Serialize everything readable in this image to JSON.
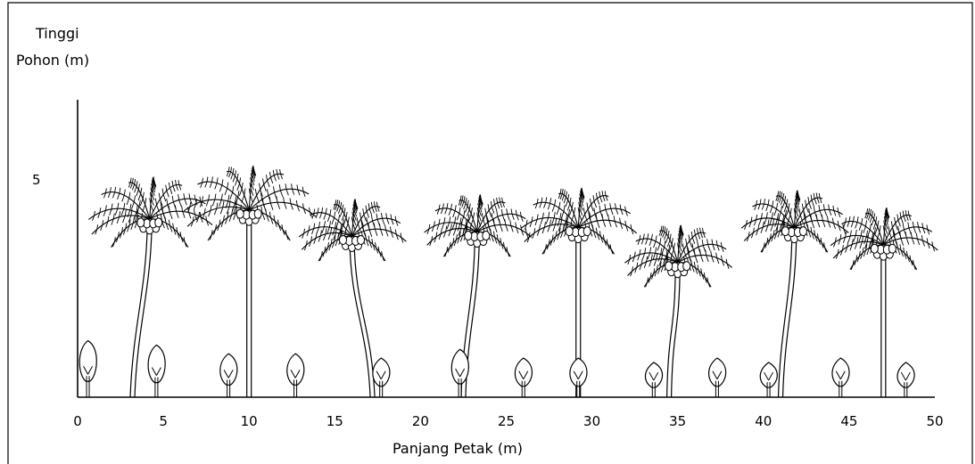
{
  "chart_data": {
    "type": "profile-diagram",
    "ylabel_line1": "Tinggi",
    "ylabel_line2": "Pohon (m)",
    "xlabel": "Panjang Petak (m)",
    "xlim": [
      0,
      50
    ],
    "x_ticks": [
      "0",
      "5",
      "10",
      "15",
      "20",
      "25",
      "30",
      "35",
      "40",
      "45",
      "50"
    ],
    "y_tick": "5",
    "palms": [
      {
        "base": 3.2,
        "crown_x": 4.2,
        "top": 5.4,
        "crown_y": 4.1
      },
      {
        "base": 10.0,
        "crown_x": 10.0,
        "top": 5.7,
        "crown_y": 4.3
      },
      {
        "base": 17.2,
        "crown_x": 16.0,
        "top": 4.8,
        "crown_y": 3.7
      },
      {
        "base": 22.5,
        "crown_x": 23.3,
        "top": 4.9,
        "crown_y": 3.8
      },
      {
        "base": 29.2,
        "crown_x": 29.2,
        "top": 5.1,
        "crown_y": 3.9
      },
      {
        "base": 34.5,
        "crown_x": 35.0,
        "top": 4.2,
        "crown_y": 3.1
      },
      {
        "base": 41.0,
        "crown_x": 41.8,
        "top": 5.0,
        "crown_y": 3.9
      },
      {
        "base": 47.0,
        "crown_x": 47.0,
        "top": 4.6,
        "crown_y": 3.5
      }
    ],
    "shrubs": [
      {
        "x": 0.6,
        "h": 1.3
      },
      {
        "x": 4.6,
        "h": 1.2
      },
      {
        "x": 8.8,
        "h": 1.0
      },
      {
        "x": 12.7,
        "h": 1.0
      },
      {
        "x": 17.7,
        "h": 0.9
      },
      {
        "x": 22.3,
        "h": 1.1
      },
      {
        "x": 26.0,
        "h": 0.9
      },
      {
        "x": 29.2,
        "h": 0.9
      },
      {
        "x": 33.6,
        "h": 0.8
      },
      {
        "x": 37.3,
        "h": 0.9
      },
      {
        "x": 40.3,
        "h": 0.8
      },
      {
        "x": 44.5,
        "h": 0.9
      },
      {
        "x": 48.3,
        "h": 0.8
      }
    ]
  }
}
